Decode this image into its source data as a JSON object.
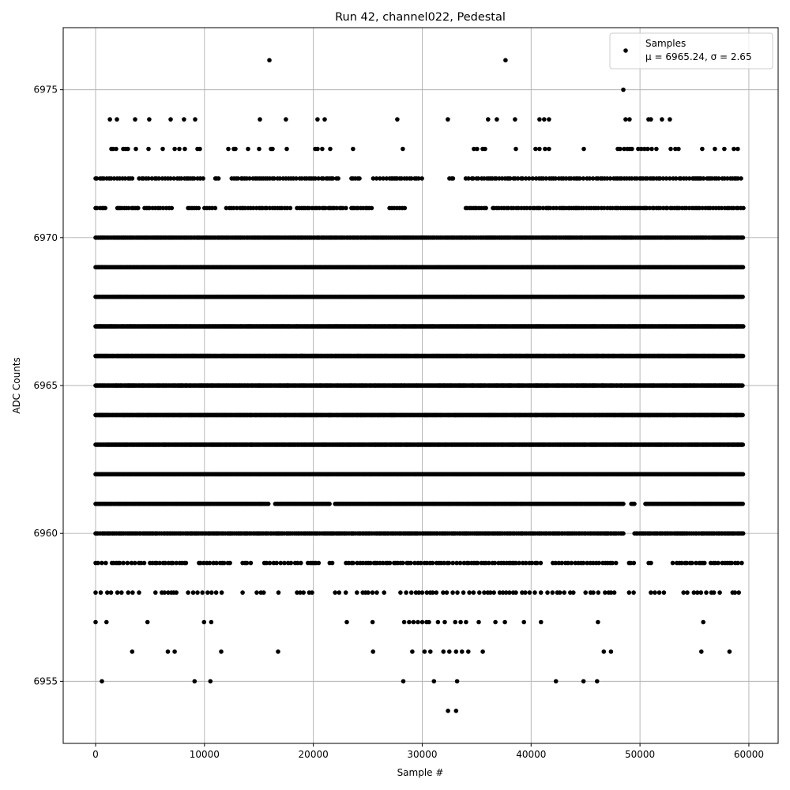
{
  "chart_data": {
    "type": "scatter",
    "title": "Run 42, channel022, Pedestal",
    "xlabel": "Sample #",
    "ylabel": "ADC Counts",
    "xlim": [
      -2975,
      62690
    ],
    "ylim": [
      6952.9,
      6977.1
    ],
    "xticks": [
      0,
      10000,
      20000,
      30000,
      40000,
      50000,
      60000
    ],
    "xtick_labels": [
      "0",
      "10000",
      "20000",
      "30000",
      "40000",
      "50000",
      "60000"
    ],
    "yticks": [
      6955,
      6960,
      6965,
      6970,
      6975
    ],
    "ytick_labels": [
      "6955",
      "6960",
      "6965",
      "6970",
      "6975"
    ],
    "grid": true,
    "legend": {
      "placement": "top-right",
      "entries": [
        "Samples",
        "μ = 6965.24, σ = 2.65"
      ]
    },
    "marker_color": "#000000",
    "series": [
      {
        "name": "Samples",
        "sparse_points": [
          {
            "y": 6976,
            "x": [
              15960,
              37650
            ]
          },
          {
            "y": 6975,
            "x": [
              48470
            ]
          },
          {
            "y": 6974,
            "x": [
              1310,
              1960,
              3630,
              4930,
              6890,
              8120,
              9140,
              15090,
              17480,
              20380,
              21040,
              27710,
              32350,
              36050,
              36850,
              38520,
              40770,
              41200,
              41640,
              48680,
              49040,
              50780,
              51000,
              52020,
              52740
            ]
          },
          {
            "y": 6973,
            "x": [
              1450,
              1600,
              1890,
              2540,
              2760,
              2970,
              3700,
              4860,
              6170,
              7260,
              7690,
              8200,
              9360,
              9580,
              12190,
              12700,
              12840,
              14000,
              15020,
              16110,
              16250,
              17560,
              20170,
              20390,
              20820,
              21550,
              23650,
              28220,
              34750,
              35040,
              35550,
              35770,
              38600,
              40410,
              40770,
              41280,
              41640,
              44840,
              47960,
              48170,
              48540,
              48830,
              49040,
              49260,
              49840,
              50130,
              50420,
              50710,
              51080,
              51510,
              52820,
              53250,
              53540,
              55720,
              56880,
              57750,
              58620,
              58980
            ]
          },
          {
            "y": 6957,
            "x": [
              0,
              1000,
              4770,
              9960,
              10620,
              23070,
              25440,
              28340,
              28800,
              29200,
              29600,
              30000,
              30400,
              30620,
              31450,
              32070,
              33030,
              33530,
              34020,
              35190,
              36720,
              37590,
              39340,
              40910,
              46140,
              55810
            ]
          },
          {
            "y": 6956,
            "x": [
              3360,
              6640,
              7260,
              11540,
              16760,
              25480,
              29090,
              30210,
              30750,
              31950,
              32490,
              33110,
              33650,
              34230,
              35560,
              46680,
              47340,
              55640,
              58220
            ]
          },
          {
            "y": 6955,
            "x": [
              580,
              9090,
              10540,
              28260,
              31080,
              33200,
              42280,
              44810,
              46060
            ]
          },
          {
            "y": 6954,
            "x": [
              32370,
              33110
            ]
          }
        ],
        "dense_levels": [
          {
            "y": 6972,
            "step": 220,
            "segments": [
              [
                0,
                3500
              ],
              [
                4000,
                10000
              ],
              [
                11000,
                11500
              ],
              [
                12500,
                22500
              ],
              [
                23500,
                24500
              ],
              [
                25500,
                30000
              ],
              [
                32500,
                33000
              ],
              [
                34000,
                59500
              ]
            ]
          },
          {
            "y": 6971,
            "step": 200,
            "segments": [
              [
                0,
                1000
              ],
              [
                2000,
                4000
              ],
              [
                4500,
                7000
              ],
              [
                8500,
                9500
              ],
              [
                10000,
                11000
              ],
              [
                12000,
                18000
              ],
              [
                18500,
                23000
              ],
              [
                23500,
                25500
              ],
              [
                27000,
                28500
              ],
              [
                34000,
                36000
              ],
              [
                36500,
                59500
              ]
            ]
          },
          {
            "y": 6970,
            "step": 120,
            "segments": [
              [
                0,
                59500
              ]
            ]
          },
          {
            "y": 6969,
            "step": 60,
            "segments": [
              [
                0,
                59500
              ]
            ]
          },
          {
            "y": 6968,
            "step": 60,
            "segments": [
              [
                0,
                59500
              ]
            ]
          },
          {
            "y": 6967,
            "step": 60,
            "segments": [
              [
                0,
                59500
              ]
            ]
          },
          {
            "y": 6966,
            "step": 60,
            "segments": [
              [
                0,
                59500
              ]
            ]
          },
          {
            "y": 6965,
            "step": 60,
            "segments": [
              [
                0,
                59500
              ]
            ]
          },
          {
            "y": 6964,
            "step": 60,
            "segments": [
              [
                0,
                59500
              ]
            ]
          },
          {
            "y": 6963,
            "step": 60,
            "segments": [
              [
                0,
                59500
              ]
            ]
          },
          {
            "y": 6962,
            "step": 60,
            "segments": [
              [
                0,
                59500
              ]
            ]
          },
          {
            "y": 6961,
            "step": 100,
            "segments": [
              [
                0,
                16000
              ],
              [
                16500,
                21500
              ],
              [
                22000,
                48500
              ],
              [
                49200,
                49500
              ],
              [
                50500,
                59500
              ]
            ]
          },
          {
            "y": 6960,
            "step": 140,
            "segments": [
              [
                0,
                48500
              ],
              [
                49500,
                59500
              ]
            ]
          },
          {
            "y": 6959,
            "step": 260,
            "segments": [
              [
                0,
                1000
              ],
              [
                1500,
                3000
              ],
              [
                3300,
                4500
              ],
              [
                5000,
                6000
              ],
              [
                6200,
                8500
              ],
              [
                9500,
                12500
              ],
              [
                13500,
                14500
              ],
              [
                15500,
                19000
              ],
              [
                19500,
                20500
              ],
              [
                21500,
                22000
              ],
              [
                23000,
                41000
              ],
              [
                42000,
                48000
              ],
              [
                49000,
                49500
              ],
              [
                50800,
                51200
              ],
              [
                53000,
                56000
              ],
              [
                56500,
                59500
              ]
            ]
          },
          {
            "y": 6958,
            "step": 420,
            "segments": [
              [
                0,
                1500
              ],
              [
                2000,
                2500
              ],
              [
                3000,
                4300
              ],
              [
                5500,
                7500
              ],
              [
                8500,
                12000
              ],
              [
                13500,
                14000
              ],
              [
                14800,
                15500
              ],
              [
                16800,
                17000
              ],
              [
                18500,
                20000
              ],
              [
                22000,
                23500
              ],
              [
                24000,
                26000
              ],
              [
                26500,
                27000
              ],
              [
                28000,
                44000
              ],
              [
                45000,
                48000
              ],
              [
                49000,
                49500
              ],
              [
                51000,
                52500
              ],
              [
                54000,
                57500
              ],
              [
                58500,
                59300
              ]
            ]
          }
        ]
      }
    ]
  }
}
